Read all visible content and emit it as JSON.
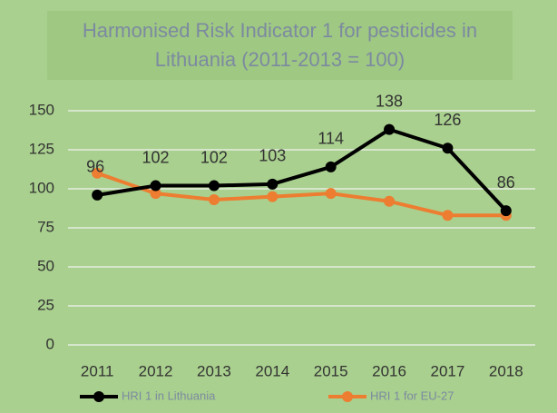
{
  "chart_data": {
    "type": "line",
    "title": "Harmonised Risk Indicator 1 for pesticides in Lithuania (2011-2013 = 100)",
    "categories": [
      "2011",
      "2012",
      "2013",
      "2014",
      "2015",
      "2016",
      "2017",
      "2018"
    ],
    "series": [
      {
        "name": "HRI 1 in Lithuania",
        "color": "#000000",
        "values": [
          96,
          102,
          102,
          103,
          114,
          138,
          126,
          86
        ],
        "data_labels": true
      },
      {
        "name": "HRI 1 for EU-27",
        "color": "#ed7d31",
        "values": [
          110,
          97,
          93,
          95,
          97,
          92,
          83,
          83
        ],
        "data_labels": false
      }
    ],
    "ylim": [
      0,
      150
    ],
    "yticks": [
      0,
      25,
      50,
      75,
      100,
      125,
      150
    ],
    "grid": true,
    "legend": "bottom"
  }
}
